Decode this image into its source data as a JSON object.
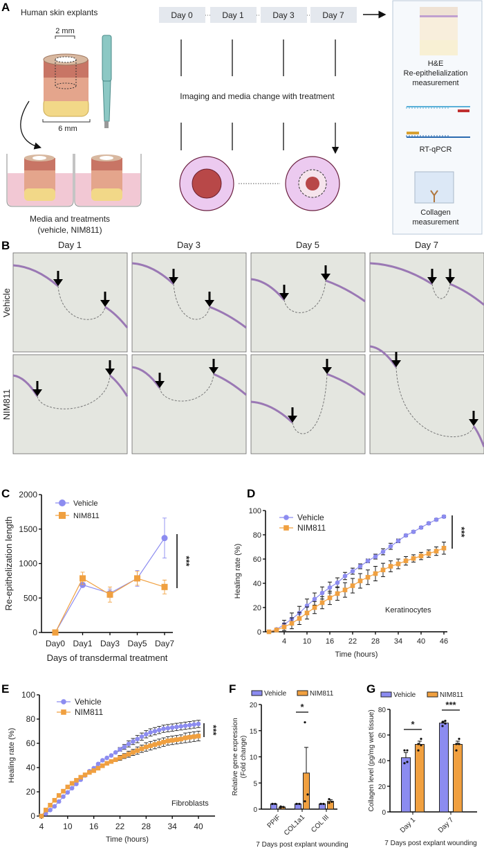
{
  "panel_labels": {
    "a": "A",
    "b": "B",
    "c": "C",
    "d": "D",
    "e": "E",
    "f": "F",
    "g": "G"
  },
  "panel_a": {
    "title": "Human skin explants",
    "dim_inner": "2 mm",
    "dim_outer": "6 mm",
    "caption_line1": "Media and treatments",
    "caption_line2": "(vehicle, NIM811)",
    "timeline": [
      "Day 0",
      "Day 1",
      "Day 3",
      "Day 7"
    ],
    "timeline_note": "Imaging and media change with treatment",
    "readouts": {
      "he_line1": "H&E",
      "he_line2": "Re-epithelialization",
      "he_line3": "measurement",
      "rtqpcr": "RT-qPCR",
      "collagen_line1": "Collagen",
      "collagen_line2": "measurement"
    }
  },
  "panel_b": {
    "columns": [
      "Day 1",
      "Day 3",
      "Day 5",
      "Day 7"
    ],
    "rows": [
      "Vehicle",
      "NIM811"
    ]
  },
  "colors": {
    "vehicle": "#8c8cf0",
    "nim811": "#f0a040",
    "epidermis": "#9a78b4",
    "tissue": "#e4e6e0"
  },
  "chart_data": [
    {
      "id": "C",
      "type": "line",
      "categories": [
        "Day0",
        "Day1",
        "Day3",
        "Day5",
        "Day7"
      ],
      "ylabel": "Re-epithelization length",
      "xlabel": "Days of transdermal treatment",
      "ylim": [
        0,
        2000
      ],
      "yticks": [
        0,
        500,
        1000,
        1500,
        2000
      ],
      "legend": "top-left",
      "grid": false,
      "significance": "***",
      "series": [
        {
          "name": "Vehicle",
          "values": [
            0,
            690,
            570,
            785,
            1370
          ],
          "error": [
            0,
            20,
            60,
            115,
            290
          ]
        },
        {
          "name": "NIM811",
          "values": [
            0,
            785,
            550,
            785,
            660
          ],
          "error": [
            0,
            90,
            110,
            100,
            100
          ]
        }
      ]
    },
    {
      "id": "D",
      "type": "line",
      "x": [
        0,
        2,
        4,
        6,
        8,
        10,
        12,
        14,
        16,
        18,
        20,
        22,
        24,
        26,
        28,
        30,
        32,
        34,
        36,
        38,
        40,
        42,
        44,
        46
      ],
      "xticks": [
        4,
        10,
        16,
        22,
        28,
        34,
        40,
        46
      ],
      "ylabel": "Healing rate (%)",
      "xlabel": "Time (hours)",
      "ylim": [
        0,
        100
      ],
      "yticks": [
        0,
        20,
        40,
        60,
        80,
        100
      ],
      "annotation": "Keratinocytes",
      "legend": "top-left",
      "grid": false,
      "significance": "***",
      "series": [
        {
          "name": "Vehicle",
          "values": [
            0,
            2,
            6,
            10.5,
            15.5,
            21.5,
            27,
            32,
            36.5,
            40.5,
            46,
            50,
            54,
            58.5,
            62,
            66,
            70.5,
            75,
            79.5,
            82.5,
            86,
            89.5,
            92.5,
            95
          ],
          "error": [
            0,
            1,
            3.5,
            5,
            5.5,
            5.5,
            5,
            5,
            4.5,
            4,
            3,
            2.5,
            2,
            1.5,
            2,
            2.5,
            2.5,
            1.5,
            1,
            1,
            1,
            1,
            1,
            1
          ]
        },
        {
          "name": "NIM811",
          "values": [
            0,
            1.5,
            4,
            7,
            11,
            15.5,
            20,
            24,
            28,
            31.5,
            34.5,
            38,
            42,
            45,
            48,
            51,
            54,
            56,
            58.5,
            60.5,
            62.5,
            64.5,
            66.5,
            69
          ],
          "error": [
            0,
            1,
            3,
            4.5,
            5,
            5,
            5,
            5,
            5.5,
            5.5,
            6,
            6,
            6,
            6,
            6,
            5.5,
            4.5,
            4,
            3.5,
            3,
            3,
            3,
            3.5,
            5
          ]
        }
      ]
    },
    {
      "id": "E",
      "type": "line",
      "x": [
        4,
        5,
        6,
        7,
        8,
        9,
        10,
        11,
        12,
        13,
        14,
        15,
        16,
        17,
        18,
        19,
        20,
        21,
        22,
        23,
        24,
        25,
        26,
        27,
        28,
        29,
        30,
        31,
        32,
        33,
        34,
        35,
        36,
        37,
        38,
        39,
        40
      ],
      "xticks": [
        4,
        10,
        16,
        22,
        28,
        34,
        40
      ],
      "ylabel": "Healing rate (%)",
      "xlabel": "Time (hours)",
      "ylim": [
        0,
        100
      ],
      "yticks": [
        0,
        20,
        40,
        60,
        80,
        100
      ],
      "annotation": "Fibroblasts",
      "legend": "top-left",
      "grid": false,
      "significance": "***",
      "series": [
        {
          "name": "Vehicle",
          "values": [
            0,
            2,
            5,
            8,
            12,
            16,
            19.5,
            23,
            26.5,
            30,
            33.5,
            37,
            39.5,
            43,
            46,
            48,
            50,
            52.5,
            55,
            57,
            59.5,
            61.5,
            63.5,
            65.5,
            67.5,
            69,
            70,
            71,
            72,
            72.5,
            73,
            73.5,
            74,
            74.5,
            75,
            75.5,
            76
          ],
          "error": [
            0,
            0,
            0,
            0,
            0,
            0,
            0,
            0,
            0,
            0,
            0,
            0,
            0,
            0,
            0,
            0,
            0,
            0,
            1.5,
            2,
            2.5,
            2.5,
            3,
            3,
            3,
            3,
            3,
            3,
            3,
            3,
            3,
            3,
            3,
            3,
            3,
            3,
            3
          ]
        },
        {
          "name": "NIM811",
          "values": [
            0,
            5,
            9,
            13,
            17,
            20.5,
            24,
            27,
            29.5,
            32,
            34,
            36,
            37.5,
            39.5,
            41.5,
            43.5,
            45,
            46.5,
            48,
            49.5,
            51,
            52.5,
            54,
            55.5,
            57,
            58,
            59,
            60,
            61,
            62,
            62.5,
            63,
            63.5,
            64.5,
            65,
            65.5,
            66
          ],
          "error": [
            0,
            0,
            0,
            0,
            0,
            0,
            0,
            0,
            0,
            0,
            0,
            0,
            0,
            0,
            0,
            0,
            1,
            1.5,
            2,
            2,
            2.5,
            2.5,
            3,
            3,
            3.5,
            3.5,
            3.5,
            3.5,
            3.5,
            3.5,
            3.5,
            3.5,
            3.5,
            4,
            4,
            4,
            4
          ]
        }
      ]
    },
    {
      "id": "F",
      "type": "bar",
      "categories": [
        "PPIF",
        "COL1a1",
        "COL III"
      ],
      "ylabel_line1": "Relative gene expression",
      "ylabel_line2": "(Fold change)",
      "xlabel": "7 Days post explant wounding",
      "ylim": [
        0,
        20
      ],
      "yticks": [
        0,
        5,
        10,
        15,
        20
      ],
      "legend": "top",
      "grid": false,
      "significance": [
        {
          "category": "COL1a1",
          "label": "*"
        }
      ],
      "series": [
        {
          "name": "Vehicle",
          "values": [
            1,
            1,
            1
          ],
          "error": [
            0.05,
            0.05,
            0.05
          ],
          "points": [
            [
              1,
              1,
              1
            ],
            [
              1,
              1,
              1
            ],
            [
              1,
              1,
              1
            ]
          ]
        },
        {
          "name": "NIM811",
          "values": [
            0.4,
            6.9,
            1.5
          ],
          "error": [
            0.1,
            4.9,
            0.3
          ],
          "points": [
            [
              0.3,
              0.4,
              0.5
            ],
            [
              1.5,
              2.8,
              16.6
            ],
            [
              1.2,
              1.4,
              1.9
            ]
          ]
        }
      ]
    },
    {
      "id": "G",
      "type": "bar",
      "categories": [
        "Day 1",
        "Day 7"
      ],
      "ylabel": "Collagen level (pg/mg wet tissue)",
      "xlabel": "7 Days post explant wounding",
      "ylim": [
        0,
        80
      ],
      "yticks": [
        0,
        20,
        40,
        60,
        80
      ],
      "legend": "top",
      "grid": false,
      "significance": [
        {
          "category": "Day 1",
          "label": "*"
        },
        {
          "category": "Day 7",
          "label": "***"
        }
      ],
      "series": [
        {
          "name": "Vehicle",
          "values": [
            42.3,
            69.3
          ],
          "error": [
            4,
            1.5
          ],
          "points": [
            [
              38,
              39,
              48,
              48
            ],
            [
              67,
              69,
              70,
              71
            ]
          ]
        },
        {
          "name": "NIM811",
          "values": [
            52.7,
            52.7
          ],
          "error": [
            2.5,
            2.5
          ],
          "points": [
            [
              48,
              52,
              53,
              57
            ],
            [
              48,
              53,
              53,
              57
            ]
          ]
        }
      ]
    }
  ]
}
